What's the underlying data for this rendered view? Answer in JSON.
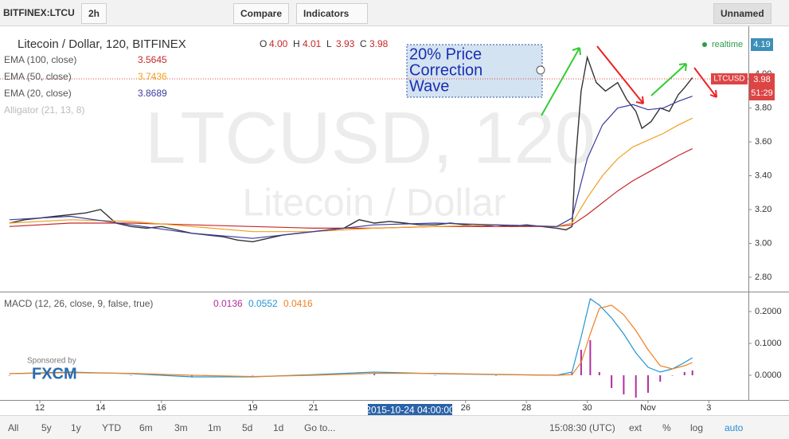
{
  "toolbar": {
    "symbol": "BITFINEX:LTCU",
    "interval": "2h",
    "compare": "Compare",
    "indicators": "Indicators",
    "layout": "Unnamed"
  },
  "watermark": {
    "symbol": "LTCUSD, 120",
    "name": "Litecoin / Dollar"
  },
  "annotation": [
    "20% Price",
    "Correction",
    "Wave"
  ],
  "status": {
    "realtime": "realtime",
    "high_tag": "4.19",
    "symbol_tag": "LTCUSD",
    "last": "3.98",
    "countdown": "51:29"
  },
  "macd_title": "MACD (12, 26, close, 9, false, true)",
  "sponsor": {
    "text": "Sponsored by",
    "logo": "FXCM"
  },
  "crosshair_date": "2015-10-24 04:00:00",
  "bottom_bar": [
    "All",
    "5y",
    "1y",
    "YTD",
    "6m",
    "3m",
    "1m",
    "5d",
    "1d",
    "Go to...",
    "15:08:30 (UTC)",
    "ext",
    "%",
    "log",
    "auto"
  ],
  "chart_data": [
    {
      "type": "line",
      "xlim": [
        10.69,
        35.3
      ],
      "ylim": [
        2.72,
        4.25
      ],
      "yticks": [
        {
          "value": 2.8,
          "label": "2.80"
        },
        {
          "value": 3,
          "label": "3.00"
        },
        {
          "value": 3.2,
          "label": "3.20"
        },
        {
          "value": 3.4,
          "label": "3.40"
        },
        {
          "value": 3.6,
          "label": "3.60"
        },
        {
          "value": 3.8,
          "label": "3.80"
        },
        {
          "value": 4,
          "label": "4.00"
        }
      ],
      "ohlc": [
        {
          "label": "O",
          "value": "4.00"
        },
        {
          "label": "H",
          "value": "4.01"
        },
        {
          "label": "L",
          "value": "3.93"
        },
        {
          "label": "C",
          "value": "3.98"
        }
      ],
      "series": [
        {
          "name": "Litecoin / Dollar, 120, BITFINEX",
          "color": "#333333",
          "type": "line",
          "x": [
            11,
            11.5,
            12,
            12.5,
            13,
            13.5,
            14,
            14.5,
            15,
            15.5,
            16,
            16.5,
            17,
            17.5,
            18,
            18.5,
            19,
            19.5,
            20,
            20.5,
            21,
            21.5,
            22,
            22.5,
            23,
            23.5,
            24,
            24.5,
            25,
            25.5,
            26,
            26.5,
            27,
            27.5,
            28,
            28.5,
            29,
            29.3,
            29.5,
            29.6,
            29.8,
            30,
            30.3,
            30.6,
            31,
            31.3,
            31.6,
            31.8,
            32.1,
            32.4,
            32.7,
            33,
            33.2,
            33.46
          ],
          "values": [
            3.12,
            3.14,
            3.15,
            3.16,
            3.17,
            3.18,
            3.2,
            3.12,
            3.1,
            3.09,
            3.1,
            3.08,
            3.06,
            3.05,
            3.04,
            3.02,
            3.01,
            3.03,
            3.05,
            3.06,
            3.07,
            3.08,
            3.09,
            3.14,
            3.12,
            3.13,
            3.12,
            3.11,
            3.11,
            3.12,
            3.11,
            3.1,
            3.11,
            3.1,
            3.11,
            3.1,
            3.09,
            3.08,
            3.1,
            3.45,
            3.9,
            4.1,
            3.95,
            3.9,
            3.95,
            3.85,
            3.78,
            3.68,
            3.72,
            3.8,
            3.78,
            3.88,
            3.92,
            3.98
          ]
        },
        {
          "name": "EMA (100, close)",
          "legend_value": "3.5645",
          "color": "#c62828",
          "type": "line",
          "x": [
            11,
            13,
            15,
            17,
            19,
            21,
            23,
            25,
            27,
            29,
            29.5,
            30,
            30.5,
            31,
            31.5,
            32,
            32.5,
            33,
            33.46
          ],
          "values": [
            3.1,
            3.12,
            3.12,
            3.11,
            3.1,
            3.09,
            3.09,
            3.1,
            3.1,
            3.1,
            3.11,
            3.17,
            3.24,
            3.31,
            3.37,
            3.42,
            3.47,
            3.52,
            3.56
          ]
        },
        {
          "name": "EMA (50, close)",
          "legend_value": "3.7436",
          "color": "#f0a020",
          "type": "line",
          "x": [
            11,
            13,
            15,
            17,
            19,
            21,
            23,
            25,
            27,
            29,
            29.5,
            30,
            30.5,
            31,
            31.5,
            32,
            32.5,
            33,
            33.46
          ],
          "values": [
            3.12,
            3.14,
            3.13,
            3.1,
            3.07,
            3.07,
            3.09,
            3.1,
            3.11,
            3.1,
            3.12,
            3.27,
            3.4,
            3.5,
            3.57,
            3.61,
            3.65,
            3.7,
            3.74
          ]
        },
        {
          "name": "EMA (20, close)",
          "legend_value": "3.8689",
          "color": "#3a3aa0",
          "type": "line",
          "x": [
            11,
            13,
            15,
            17,
            19,
            21,
            23,
            25,
            27,
            29,
            29.5,
            30,
            30.5,
            31,
            31.5,
            32,
            32.5,
            33,
            33.46
          ],
          "values": [
            3.14,
            3.16,
            3.11,
            3.06,
            3.03,
            3.07,
            3.11,
            3.12,
            3.11,
            3.1,
            3.15,
            3.5,
            3.7,
            3.8,
            3.82,
            3.79,
            3.8,
            3.84,
            3.87
          ]
        }
      ],
      "extra_legend": "Alligator (21, 13, 8)"
    },
    {
      "type": "line",
      "xlim": [
        10.69,
        35.3
      ],
      "ylim": [
        -0.0725,
        0.2575
      ],
      "yticks": [
        {
          "value": 0,
          "label": "0.0000"
        },
        {
          "value": 0.1,
          "label": "0.1000"
        },
        {
          "value": 0.2,
          "label": "0.2000"
        }
      ],
      "xticks": [
        12,
        14,
        16,
        19,
        21,
        26,
        28,
        30,
        {
          "value": 32,
          "label": "Nov"
        },
        {
          "value": 34,
          "label": "3"
        }
      ],
      "series": [
        {
          "name": "Histogram",
          "legend_value": "0.0136",
          "color": "#b02e9d",
          "type": "histogram",
          "x": [
            11,
            13,
            15,
            17,
            19,
            21,
            23,
            25,
            27,
            29,
            29.5,
            29.8,
            30.1,
            30.4,
            30.8,
            31.2,
            31.6,
            32,
            32.4,
            32.8,
            33.2,
            33.46
          ],
          "values": [
            0,
            0.002,
            -0.001,
            -0.005,
            -0.001,
            0.002,
            0.004,
            -0.001,
            -0.001,
            0,
            0.008,
            0.08,
            0.11,
            0.01,
            -0.04,
            -0.06,
            -0.07,
            -0.055,
            -0.02,
            0,
            0.01,
            0.015
          ]
        },
        {
          "name": "MACD",
          "legend_value": "0.0552",
          "color": "#2196d3",
          "type": "line",
          "x": [
            11,
            13,
            15,
            17,
            19,
            21,
            23,
            25,
            27,
            29,
            29.5,
            29.8,
            30.1,
            30.4,
            30.8,
            31.2,
            31.6,
            32,
            32.4,
            32.8,
            33.2,
            33.46
          ],
          "values": [
            0.005,
            0.01,
            0.005,
            -0.005,
            -0.005,
            0.002,
            0.01,
            0.005,
            0.002,
            0,
            0.01,
            0.12,
            0.24,
            0.22,
            0.18,
            0.13,
            0.07,
            0.025,
            0.01,
            0.02,
            0.04,
            0.055
          ]
        },
        {
          "name": "Signal",
          "legend_value": "0.0416",
          "color": "#f08020",
          "type": "line",
          "x": [
            11,
            13,
            15,
            17,
            19,
            21,
            23,
            25,
            27,
            29,
            29.5,
            29.8,
            30.1,
            30.4,
            30.8,
            31.2,
            31.6,
            32,
            32.4,
            32.8,
            33.2,
            33.46
          ],
          "values": [
            0.005,
            0.008,
            0.006,
            0,
            -0.004,
            0,
            0.006,
            0.006,
            0.003,
            0,
            0.002,
            0.04,
            0.13,
            0.21,
            0.22,
            0.19,
            0.14,
            0.08,
            0.03,
            0.02,
            0.03,
            0.04
          ]
        }
      ]
    }
  ]
}
